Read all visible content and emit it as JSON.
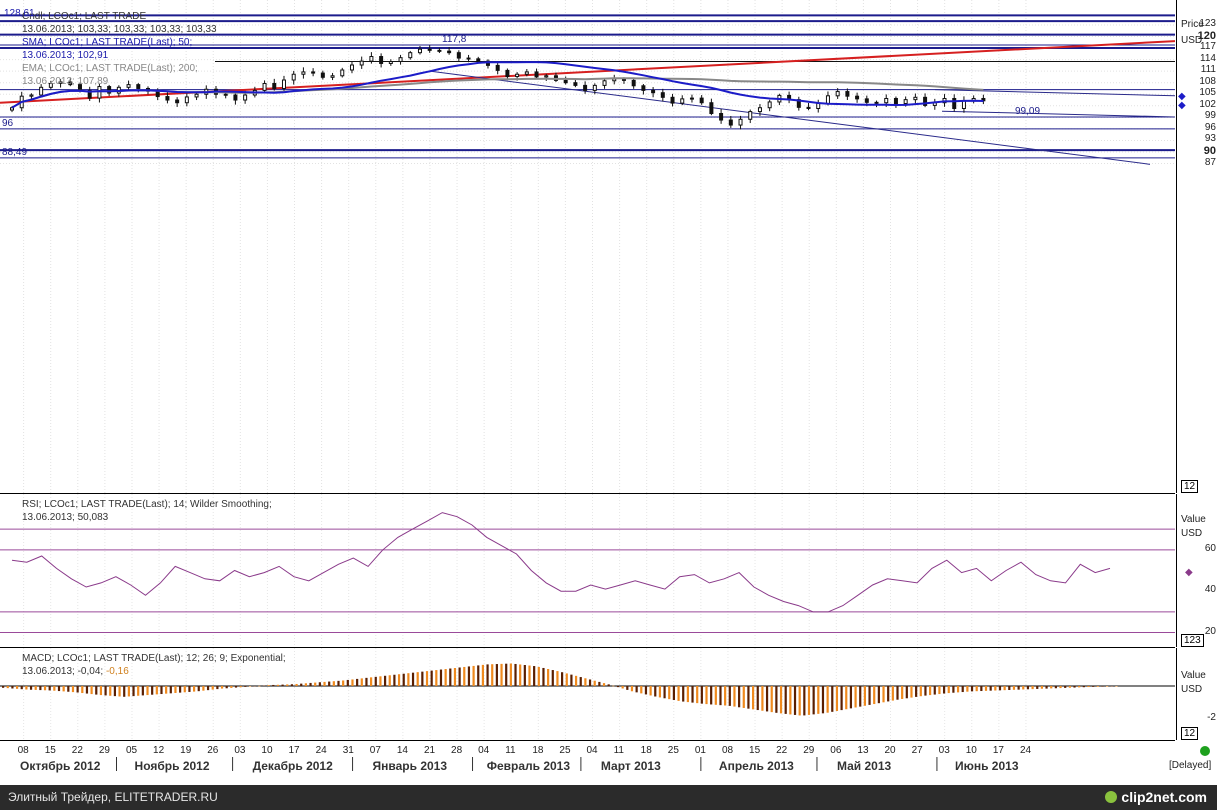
{
  "price_pane": {
    "legend": {
      "cndl_label": "Cndl; LCOc1; LAST TRADE",
      "cndl_values": "13.06.2013; 103,33; 103,33; 103,33; 103,33",
      "sma_label": "SMA; LCOc1; LAST TRADE(Last);  50;",
      "sma_values": "13.06.2013; 102,91",
      "ema_label": "EMA; LCOc1; LAST TRADE(Last);  200;",
      "ema_values": "13.06.2013; 107,89"
    },
    "corner_label": "128,61",
    "axis_title": "Price",
    "axis_unit": "USD",
    "axis_badge": "12",
    "line_labels": {
      "l1178": "117,8",
      "l9909": "99,09",
      "l96": "96",
      "l8849": "88,49"
    },
    "ticks": [
      "123",
      "120",
      "117",
      "114",
      "111",
      "108",
      "105",
      "102",
      "99",
      "96",
      "93",
      "90",
      "87"
    ],
    "bold_ticks": [
      "120",
      "90"
    ]
  },
  "rsi_pane": {
    "legend_label": "RSI; LCOc1; LAST TRADE(Last);  14; Wilder Smoothing;",
    "legend_values": "13.06.2013; 50,083",
    "axis_title": "Value",
    "axis_unit": "USD",
    "ticks": [
      "60",
      "40",
      "20"
    ],
    "axis_badge": "123"
  },
  "macd_pane": {
    "legend_label": "MACD; LCOc1; LAST TRADE(Last);  12; 26; 9; Exponential;",
    "legend_values_a": "13.06.2013; -0,04;",
    "legend_values_b": "-0,16",
    "axis_title": "Value",
    "axis_unit": "USD",
    "ticks": [
      "-2"
    ],
    "axis_badge": "12"
  },
  "x_axis": {
    "days": [
      "08",
      "15",
      "22",
      "29",
      "05",
      "12",
      "19",
      "26",
      "03",
      "10",
      "17",
      "24",
      "31",
      "07",
      "14",
      "21",
      "28",
      "04",
      "11",
      "18",
      "25",
      "04",
      "11",
      "18",
      "25",
      "01",
      "08",
      "15",
      "22",
      "29",
      "06",
      "13",
      "20",
      "27",
      "03",
      "10",
      "17",
      "24"
    ],
    "months": [
      "Октябрь 2012",
      "Ноябрь 2012",
      "Декабрь 2012",
      "Январь 2013",
      "Февраль 2013",
      "Март 2013",
      "Апрель 2013",
      "Май 2013",
      "Июнь 2013"
    ],
    "delayed": "[Delayed]"
  },
  "footer": {
    "text": "Элитный Трейдер, ELITETRADER.RU",
    "logo": "clip2net.com"
  },
  "colors": {
    "candle": "#111111",
    "sma": "#1c1cc8",
    "ema": "#888888",
    "hline": "#1c1c8c",
    "trend": "#d62020",
    "rsi": "#8a3a8a",
    "macd_pos": "#5a1e00",
    "macd_signal": "#f08a1e"
  },
  "chart_data": [
    {
      "type": "candlestick",
      "title": "Cndl; LCOc1; LAST TRADE",
      "ylabel": "Price USD",
      "ylim": [
        85.5,
        128.6
      ],
      "x_start": "2012-10-05",
      "x_end": "2013-06-13",
      "candles_close": [
        101.5,
        104.5,
        104.8,
        106.8,
        107.8,
        108.2,
        107.5,
        106.0,
        104.0,
        107.0,
        105.3,
        106.8,
        107.5,
        106.5,
        105.8,
        104.4,
        103.5,
        102.8,
        104.3,
        105.0,
        106.3,
        105.0,
        104.8,
        103.5,
        104.8,
        106.0,
        107.8,
        106.5,
        108.7,
        110.2,
        110.8,
        110.5,
        109.4,
        109.8,
        111.3,
        112.6,
        113.6,
        114.8,
        113.0,
        113.5,
        114.5,
        115.8,
        116.7,
        116.4,
        116.2,
        115.8,
        114.4,
        114.2,
        113.6,
        112.5,
        111.2,
        109.6,
        110.2,
        110.8,
        109.5,
        109.8,
        108.6,
        108.0,
        107.3,
        106.0,
        107.3,
        108.5,
        109.0,
        108.6,
        107.2,
        106.0,
        105.4,
        104.2,
        102.7,
        103.8,
        104.0,
        102.8,
        100.0,
        98.3,
        97.0,
        98.5,
        100.5,
        101.5,
        103.0,
        104.7,
        103.6,
        101.6,
        101.3,
        102.6,
        104.6,
        105.7,
        104.5,
        103.8,
        102.9,
        102.8,
        103.9,
        102.6,
        103.6,
        104.2,
        102.1,
        102.8,
        103.9,
        101.3,
        103.3,
        103.9,
        103.3
      ],
      "sma_50_last": 102.91,
      "ema_200_last": 107.89,
      "horizontal_lines": [
        125.5,
        120.5,
        117.8,
        117.0,
        113.5,
        106.2,
        99.09,
        96.0,
        90.5,
        88.49
      ],
      "x_ticks": [
        "08",
        "15",
        "22",
        "29",
        "05",
        "12",
        "19",
        "26",
        "03",
        "10",
        "17",
        "24",
        "31",
        "07",
        "14",
        "21",
        "28",
        "04",
        "11",
        "18",
        "25",
        "04",
        "11",
        "18",
        "25",
        "01",
        "08",
        "15",
        "22",
        "29",
        "06",
        "13",
        "20",
        "27",
        "03",
        "10",
        "17",
        "24"
      ]
    },
    {
      "type": "line",
      "title": "RSI; LCOc1; LAST TRADE(Last); 14; Wilder Smoothing;",
      "ylim": [
        13,
        87
      ],
      "reference_lines": [
        70,
        60,
        30,
        20
      ],
      "series": [
        {
          "name": "RSI 14",
          "last": 50.083,
          "values": [
            55,
            54,
            57,
            51,
            46,
            42,
            44,
            47,
            43,
            38,
            44,
            52,
            49,
            46,
            45,
            50,
            47,
            49,
            52,
            47,
            45,
            49,
            53,
            56,
            52,
            60,
            66,
            70,
            74,
            78,
            76,
            72,
            66,
            62,
            58,
            50,
            44,
            40,
            40,
            43,
            41,
            43,
            45,
            43,
            41,
            47,
            48,
            44,
            46,
            49,
            42,
            38,
            35,
            33,
            30,
            30,
            33,
            38,
            43,
            46,
            45,
            44,
            51,
            55,
            49,
            51,
            45,
            50,
            54,
            48,
            45,
            44,
            53,
            49,
            51
          ]
        }
      ]
    },
    {
      "type": "bar",
      "title": "MACD; LCOc1; LAST TRADE(Last); 12; 26; 9; Exponential;",
      "series": [
        {
          "name": "MACD",
          "last": -0.04,
          "values": [
            -0.2,
            -0.4,
            -0.5,
            -0.7,
            -1.0,
            -1.2,
            -1.0,
            -0.8,
            -0.6,
            -0.3,
            -0.1,
            0.1,
            0.2,
            0.4,
            0.6,
            0.9,
            1.2,
            1.5,
            1.8,
            2.1,
            2.4,
            2.5,
            2.2,
            1.6,
            0.9,
            0.2,
            -0.6,
            -1.2,
            -1.7,
            -2.0,
            -2.2,
            -2.6,
            -3.0,
            -3.3,
            -3.0,
            -2.5,
            -2.0,
            -1.5,
            -1.1,
            -0.8,
            -0.6,
            -0.5,
            -0.4,
            -0.3,
            -0.2,
            -0.1,
            -0.04
          ]
        },
        {
          "name": "Signal",
          "last": -0.16
        }
      ]
    }
  ]
}
